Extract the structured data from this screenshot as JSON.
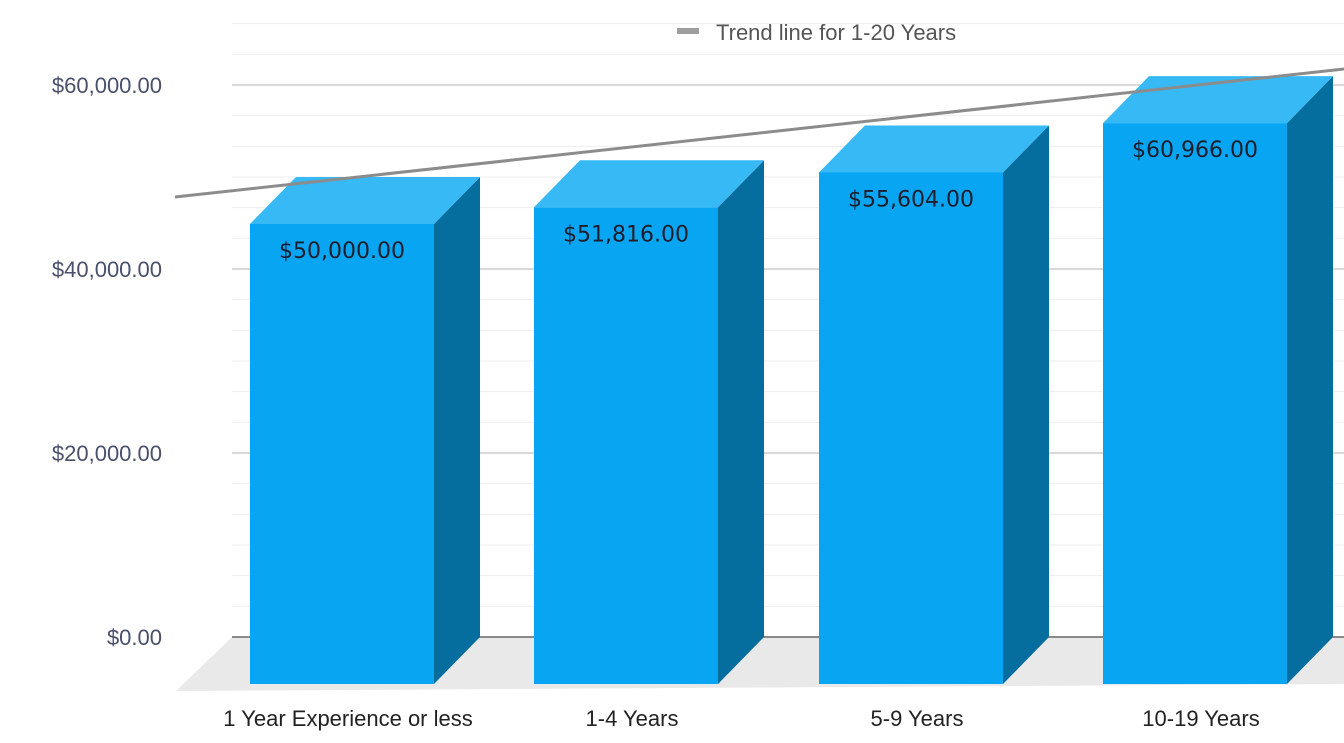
{
  "chart_data": {
    "type": "bar",
    "style": "3d-column",
    "categories": [
      "1 Year Experience or less",
      "1-4 Years",
      "5-9 Years",
      "10-19 Years"
    ],
    "values": [
      50000,
      51816,
      55604,
      60966
    ],
    "data_labels": [
      "$50,000.00",
      "$51,816.00",
      "$55,604.00",
      "$60,966.00"
    ],
    "ylim": [
      0,
      60000
    ],
    "y_ticks": [
      0,
      20000,
      40000,
      60000
    ],
    "y_tick_labels": [
      "$0.00",
      "$20,000.00",
      "$40,000.00",
      "$60,000.00"
    ],
    "grid": true,
    "legend": {
      "placement": "top-center",
      "entries": [
        {
          "label": "Trend line for 1-20 Years",
          "color": "#9e9e9e"
        }
      ]
    },
    "trendline": {
      "name": "Trend line for 1-20 Years",
      "type": "linear"
    },
    "colors": {
      "bar_front": "#08a6f2",
      "bar_top": "#36b9f5",
      "bar_side": "#066e9e",
      "trend": "#8c8c8c",
      "floor": "#e9e9e9"
    }
  }
}
